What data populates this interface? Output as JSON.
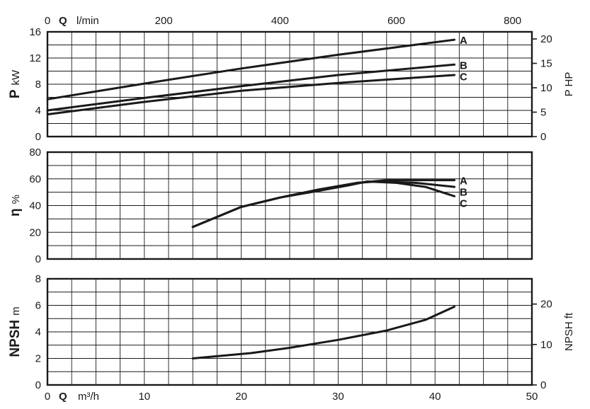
{
  "chart_data": [
    {
      "type": "line",
      "name": "power",
      "x_range": [
        0,
        50
      ],
      "ylim": [
        0,
        16
      ],
      "y_ticks": [
        "0",
        "4",
        "8",
        "12",
        "16"
      ],
      "y_label_symbol": "P",
      "y_label_unit": "kW",
      "y2_ticks": [
        0,
        5,
        10,
        15,
        20
      ],
      "y2_tick_labels": [
        "0",
        "5",
        "10",
        "15",
        "20"
      ],
      "y2_scale_kw_per_hp": 0.7457,
      "y2_label": "P HP",
      "top_axis_label_symbol": "Q",
      "top_axis_label_unit": "l/min",
      "top_axis_ticks": [
        0,
        200,
        400,
        600,
        800
      ],
      "top_axis_tick_labels": [
        "0",
        "200",
        "400",
        "600",
        "800"
      ],
      "series": [
        {
          "name": "A",
          "x": [
            0,
            10,
            20,
            30,
            42
          ],
          "y": [
            5.7,
            8.1,
            10.4,
            12.5,
            14.8
          ]
        },
        {
          "name": "B",
          "x": [
            0,
            10,
            20,
            30,
            42
          ],
          "y": [
            4.0,
            5.9,
            7.7,
            9.4,
            11.0
          ]
        },
        {
          "name": "C",
          "x": [
            0,
            10,
            20,
            30,
            42
          ],
          "y": [
            3.4,
            5.3,
            7.0,
            8.2,
            9.4
          ]
        }
      ]
    },
    {
      "type": "line",
      "name": "efficiency",
      "x_range": [
        0,
        50
      ],
      "ylim": [
        0,
        80
      ],
      "y_ticks": [
        "0",
        "20",
        "40",
        "60",
        "80"
      ],
      "y_label_symbol": "η",
      "y_label_unit": "%",
      "series": [
        {
          "name": "A",
          "x": [
            15,
            18,
            20,
            24,
            28,
            32,
            35,
            38,
            42
          ],
          "y": [
            24,
            33,
            39,
            46,
            52,
            57,
            59,
            59,
            59
          ]
        },
        {
          "name": "B",
          "x": [
            15,
            18,
            20,
            24,
            28,
            32,
            34,
            38,
            42
          ],
          "y": [
            24,
            33,
            39,
            46,
            52,
            57,
            58,
            57,
            54
          ]
        },
        {
          "name": "C",
          "x": [
            15,
            18,
            20,
            24,
            28,
            31,
            33,
            36,
            39,
            42
          ],
          "y": [
            24,
            33,
            39,
            46,
            51,
            55,
            58,
            57,
            54,
            47
          ]
        }
      ]
    },
    {
      "type": "line",
      "name": "npsh",
      "x_range": [
        0,
        50
      ],
      "ylim": [
        0,
        8
      ],
      "y_ticks": [
        "0",
        "2",
        "4",
        "6",
        "8"
      ],
      "y_label_symbol": "NPSH",
      "y_label_unit": "m",
      "y2_ticks": [
        0,
        10,
        20
      ],
      "y2_tick_labels": [
        "0",
        "10",
        "20"
      ],
      "y2_scale_m_per_ft": 0.3048,
      "y2_label": "NPSH ft",
      "x_axis_label_symbol": "Q",
      "x_axis_label_unit": "m³/h",
      "x_ticks": [
        0,
        10,
        20,
        30,
        40,
        50
      ],
      "x_tick_labels": [
        "0",
        "10",
        "20",
        "30",
        "40",
        "50"
      ],
      "series": [
        {
          "name": "",
          "x": [
            15,
            18,
            21,
            25,
            30,
            35,
            39,
            42
          ],
          "y": [
            2.0,
            2.2,
            2.4,
            2.8,
            3.4,
            4.1,
            4.9,
            5.9
          ]
        }
      ]
    }
  ]
}
